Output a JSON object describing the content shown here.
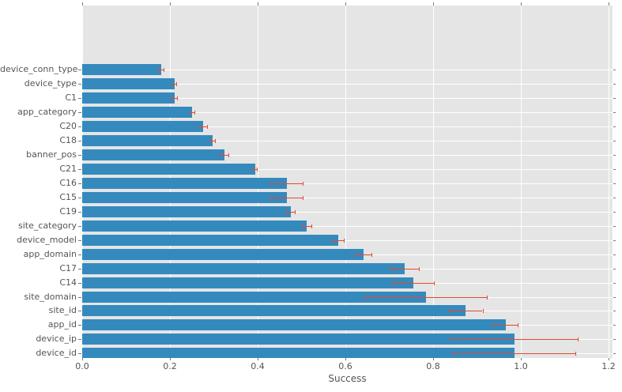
{
  "colors": {
    "figure_bg": "#FFFFFF",
    "plot_bg": "#E5E5E5",
    "grid": "#FFFFFF",
    "bar": "#348ABD",
    "error_bar": "#E24A33",
    "text": "#555555"
  },
  "chart_data": {
    "type": "bar",
    "orientation": "horizontal",
    "title": "",
    "xlabel": "Success",
    "ylabel": "",
    "xlim": [
      0,
      1.21
    ],
    "grid": true,
    "legend": "none",
    "x_tick_labels": [
      "0.0",
      "0.2",
      "0.4",
      "0.6",
      "0.8",
      "1.0",
      "1.2"
    ],
    "categories_top_to_bottom": [
      "device_conn_type",
      "device_type",
      "C1",
      "app_category",
      "C20",
      "C18",
      "banner_pos",
      "C21",
      "C16",
      "C15",
      "C19",
      "site_category",
      "device_model",
      "app_domain",
      "C17",
      "C14",
      "site_domain",
      "site_id",
      "app_id",
      "device_ip",
      "device_id"
    ],
    "series": [
      {
        "name": "Success",
        "values": [
          0.18,
          0.21,
          0.21,
          0.25,
          0.275,
          0.297,
          0.324,
          0.394,
          0.466,
          0.466,
          0.475,
          0.512,
          0.584,
          0.641,
          0.735,
          0.755,
          0.784,
          0.874,
          0.965,
          0.985,
          0.985
        ],
        "errors": [
          0.005,
          0.005,
          0.006,
          0.005,
          0.009,
          0.005,
          0.01,
          0.005,
          0.036,
          0.036,
          0.01,
          0.01,
          0.013,
          0.018,
          0.033,
          0.047,
          0.139,
          0.039,
          0.028,
          0.145,
          0.14
        ]
      }
    ]
  }
}
